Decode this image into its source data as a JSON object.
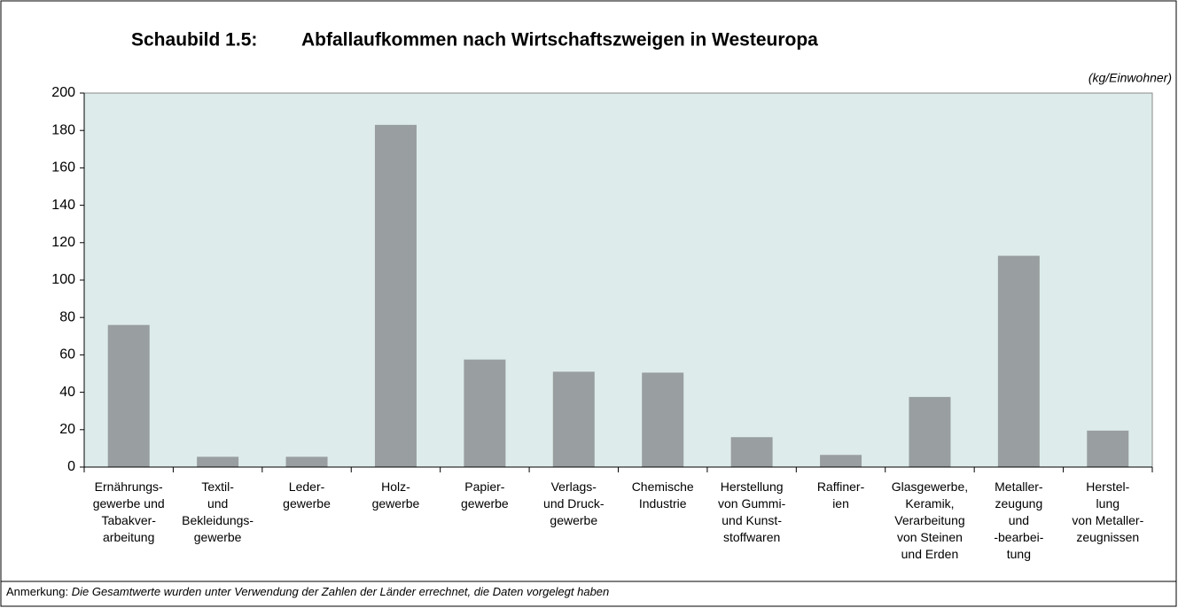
{
  "chart_data": {
    "type": "bar",
    "title_number": "Schaubild 1.5:",
    "title": "Abfallaufkommen nach Wirtschaftszweigen in Westeuropa",
    "unit": "(kg/Einwohner)",
    "categories": [
      "Ernährungs-\ngewerbe und\nTabakver-\narbeitung",
      "Textil-\nund\nBekleidungs-\ngewerbe",
      "Leder-\ngewerbe",
      "Holz-\ngewerbe",
      "Papier-\ngewerbe",
      "Verlags-\nund Druck-\ngewerbe",
      "Chemische\nIndustrie",
      "Herstellung\nvon Gummi-\nund Kunst-\nstoffwaren",
      "Raffiner-\nien",
      "Glasgewerbe,\nKeramik,\nVerarbeitung\nvon Steinen\nund Erden",
      "Metaller-\nzeugung\nund\n-bearbei-\ntung",
      "Herstel-\nlung\nvon Metaller-\nzeugnissen"
    ],
    "values": [
      76,
      5.5,
      5.5,
      183,
      57.5,
      51,
      50.5,
      16,
      6.5,
      37.5,
      113,
      19.5
    ],
    "color": "#999ea0",
    "plot_background": "#ddecea",
    "ylim": [
      0,
      200
    ],
    "yticks": [
      0,
      20,
      40,
      60,
      80,
      100,
      120,
      140,
      160,
      180,
      200
    ],
    "grid": false,
    "note_label": "Anmerkung:",
    "note": "Die Gesamtwerte wurden unter Verwendung der Zahlen der Länder errechnet, die Daten vorgelegt haben"
  }
}
